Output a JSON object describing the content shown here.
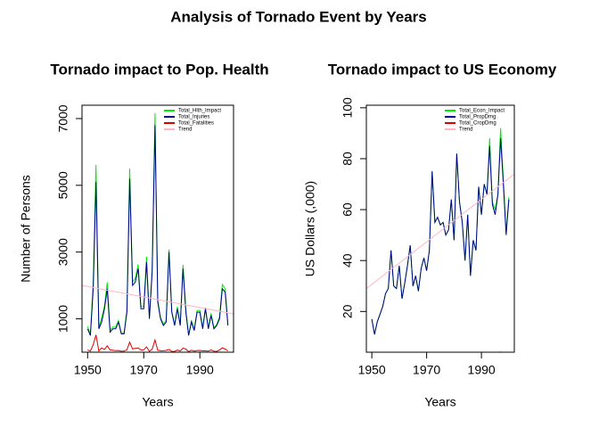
{
  "title": "Analysis of Tornado Event by Years",
  "chart_data": [
    {
      "type": "line",
      "title": "Tornado impact to Pop. Health",
      "xlabel": "Years",
      "ylabel": "Number of Persons",
      "x": [
        1950,
        1951,
        1952,
        1953,
        1954,
        1955,
        1956,
        1957,
        1958,
        1959,
        1960,
        1961,
        1962,
        1963,
        1964,
        1965,
        1966,
        1967,
        1968,
        1969,
        1970,
        1971,
        1972,
        1973,
        1974,
        1975,
        1976,
        1977,
        1978,
        1979,
        1980,
        1981,
        1982,
        1983,
        1984,
        1985,
        1986,
        1987,
        1988,
        1989,
        1990,
        1991,
        1992,
        1993,
        1994,
        1995,
        1996,
        1997,
        1998,
        1999,
        2000
      ],
      "xlim": [
        1948,
        2002
      ],
      "xticks": [
        1950,
        1970,
        1990
      ],
      "ylim": [
        0,
        7400
      ],
      "yticks": [
        1000,
        3000,
        5000,
        7000
      ],
      "series": [
        {
          "name": "Total_Hlth_Impact",
          "color": "#00ee00",
          "values": [
            770,
            534,
            2130,
            5619,
            736,
            1029,
            1383,
            2093,
            667,
            758,
            746,
            952,
            580,
            581,
            1273,
            5501,
            2098,
            2214,
            2631,
            1366,
            1373,
            2859,
            1027,
            2489,
            7166,
            1560,
            1044,
            843,
            953,
            3084,
            1228,
            824,
            1364,
            834,
            2622,
            1294,
            515,
            959,
            682,
            1250,
            1253,
            739,
            1339,
            733,
            1169,
            730,
            825,
            1067,
            2030,
            1894,
            841
          ]
        },
        {
          "name": "Total_Injuries",
          "color": "#00008b",
          "values": [
            700,
            500,
            1900,
            5100,
            700,
            900,
            1300,
            1900,
            600,
            700,
            700,
            900,
            550,
            550,
            1200,
            5200,
            2000,
            2100,
            2500,
            1300,
            1300,
            2700,
            1000,
            2400,
            6800,
            1500,
            1000,
            800,
            900,
            3000,
            1200,
            800,
            1300,
            800,
            2500,
            1200,
            500,
            900,
            650,
            1200,
            1200,
            700,
            1300,
            700,
            1100,
            700,
            800,
            1000,
            1900,
            1800,
            800
          ]
        },
        {
          "name": "Total_Fatalities",
          "color": "#dd0000",
          "values": [
            70,
            34,
            230,
            519,
            36,
            129,
            83,
            193,
            67,
            58,
            46,
            52,
            30,
            31,
            73,
            301,
            98,
            114,
            131,
            66,
            73,
            159,
            27,
            89,
            366,
            60,
            44,
            43,
            53,
            84,
            28,
            24,
            64,
            34,
            122,
            94,
            15,
            59,
            32,
            50,
            53,
            39,
            39,
            33,
            69,
            30,
            25,
            67,
            130,
            94,
            41
          ]
        },
        {
          "name": "Trend",
          "color": "#ffb6c1",
          "x": [
            1948,
            2002
          ],
          "values": [
            2000,
            1150
          ]
        }
      ]
    },
    {
      "type": "line",
      "title": "Tornado impact to US Economy",
      "xlabel": "Years",
      "ylabel": "US Dollars (,000)",
      "x": [
        1950,
        1951,
        1952,
        1953,
        1954,
        1955,
        1956,
        1957,
        1958,
        1959,
        1960,
        1961,
        1962,
        1963,
        1964,
        1965,
        1966,
        1967,
        1968,
        1969,
        1970,
        1971,
        1972,
        1973,
        1974,
        1975,
        1976,
        1977,
        1978,
        1979,
        1980,
        1981,
        1982,
        1983,
        1984,
        1985,
        1986,
        1987,
        1988,
        1989,
        1990,
        1991,
        1992,
        1993,
        1994,
        1995,
        1996,
        1997,
        1998,
        1999,
        2000
      ],
      "xlim": [
        1948,
        2002
      ],
      "xticks": [
        1950,
        1970,
        1990
      ],
      "ylim": [
        4,
        101
      ],
      "yticks": [
        20,
        40,
        60,
        80,
        100
      ],
      "series": [
        {
          "name": "Total_Econ_Impact",
          "color": "#00ee00",
          "values": [
            17,
            11,
            16,
            19,
            22,
            27,
            29,
            44,
            30,
            29,
            38,
            25,
            31,
            38,
            46,
            30,
            34,
            28,
            37,
            41,
            36,
            44,
            75,
            55,
            57,
            54,
            55,
            50,
            52,
            64,
            48,
            82,
            63,
            55,
            40,
            58,
            34,
            48,
            44,
            69,
            58,
            70,
            66,
            88,
            63,
            60,
            66,
            92,
            72,
            51,
            65
          ]
        },
        {
          "name": "Total_PropDmg",
          "color": "#00008b",
          "values": [
            17,
            11,
            16,
            19,
            22,
            27,
            29,
            44,
            30,
            29,
            38,
            25,
            31,
            38,
            46,
            30,
            34,
            28,
            37,
            41,
            36,
            44,
            75,
            55,
            57,
            54,
            55,
            50,
            52,
            64,
            48,
            82,
            63,
            55,
            40,
            58,
            34,
            48,
            44,
            69,
            58,
            70,
            66,
            85,
            62,
            58,
            66,
            88,
            70,
            50,
            64
          ]
        },
        {
          "name": "Total_CropDmg",
          "color": "#dd0000",
          "values": [
            0,
            0,
            0,
            0,
            0,
            0,
            0,
            0,
            0,
            0,
            0,
            0,
            0,
            0,
            0,
            0,
            0,
            0,
            0,
            0,
            0,
            0,
            0,
            0,
            0,
            0,
            0,
            0,
            0,
            0,
            0,
            0,
            0,
            0,
            0,
            0,
            0,
            0,
            0,
            0,
            0,
            0,
            0,
            3,
            1,
            2,
            0,
            4,
            2,
            1,
            1
          ]
        },
        {
          "name": "Trend",
          "color": "#ffb6c1",
          "x": [
            1948,
            2002
          ],
          "values": [
            29,
            74
          ]
        }
      ]
    }
  ]
}
